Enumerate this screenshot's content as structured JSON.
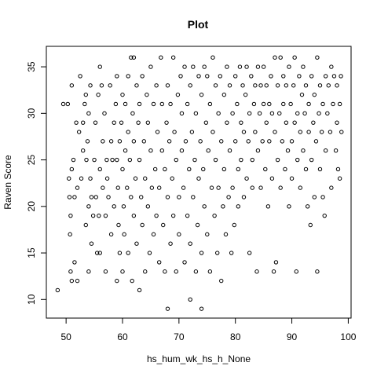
{
  "chart_data": {
    "type": "scatter",
    "title": "Plot",
    "xlabel": "hs_hum_wk_hs_h_None",
    "ylabel": "Raven Score",
    "xlim": [
      46.5,
      100.5
    ],
    "ylim": [
      8,
      37.2
    ],
    "xticks": [
      50,
      60,
      70,
      80,
      90,
      100
    ],
    "yticks": [
      10,
      15,
      20,
      25,
      30,
      35
    ],
    "grid": false,
    "legend": "none",
    "marker": "open-circle",
    "marker_color": "#000000",
    "points": [
      [
        48.5,
        11
      ],
      [
        49.5,
        31
      ],
      [
        50.3,
        31
      ],
      [
        50.5,
        23
      ],
      [
        50.6,
        21
      ],
      [
        50.7,
        17
      ],
      [
        50.8,
        13
      ],
      [
        50.8,
        19
      ],
      [
        51,
        24
      ],
      [
        51,
        33
      ],
      [
        51,
        12
      ],
      [
        51.3,
        25
      ],
      [
        51.5,
        14
      ],
      [
        51.5,
        21
      ],
      [
        51.8,
        29
      ],
      [
        52,
        12
      ],
      [
        52,
        22
      ],
      [
        52.3,
        28
      ],
      [
        52.5,
        34
      ],
      [
        52.7,
        23
      ],
      [
        53,
        26
      ],
      [
        53,
        29
      ],
      [
        53.3,
        31
      ],
      [
        53.5,
        32
      ],
      [
        53.5,
        18
      ],
      [
        53.6,
        25
      ],
      [
        53.8,
        27
      ],
      [
        54,
        30
      ],
      [
        54,
        13
      ],
      [
        54,
        20
      ],
      [
        54.3,
        23
      ],
      [
        54.3,
        33
      ],
      [
        54.5,
        16
      ],
      [
        54.5,
        21
      ],
      [
        54.8,
        19
      ],
      [
        55,
        25
      ],
      [
        55.2,
        29
      ],
      [
        55.3,
        21
      ],
      [
        55.5,
        15
      ],
      [
        55.7,
        32
      ],
      [
        55.8,
        19
      ],
      [
        56,
        35
      ],
      [
        56,
        24
      ],
      [
        56,
        15
      ],
      [
        56.3,
        33
      ],
      [
        56.5,
        22
      ],
      [
        56.5,
        27
      ],
      [
        56.8,
        30
      ],
      [
        57,
        19
      ],
      [
        57,
        13
      ],
      [
        57.2,
        25
      ],
      [
        57.3,
        23
      ],
      [
        57.5,
        21
      ],
      [
        57.8,
        33
      ],
      [
        58,
        27
      ],
      [
        58,
        17
      ],
      [
        58.2,
        25
      ],
      [
        58.5,
        29
      ],
      [
        58.5,
        20
      ],
      [
        58.8,
        31
      ],
      [
        59,
        34
      ],
      [
        59,
        12
      ],
      [
        59,
        25
      ],
      [
        59.2,
        22
      ],
      [
        59.3,
        18
      ],
      [
        59.5,
        27
      ],
      [
        59.5,
        15
      ],
      [
        59.8,
        29
      ],
      [
        60,
        32
      ],
      [
        60,
        24
      ],
      [
        60,
        13
      ],
      [
        60.2,
        20
      ],
      [
        60.3,
        17
      ],
      [
        60.5,
        26
      ],
      [
        60.5,
        31
      ],
      [
        60.8,
        22
      ],
      [
        61,
        34
      ],
      [
        61,
        28
      ],
      [
        61,
        15
      ],
      [
        61.3,
        25
      ],
      [
        61.5,
        36
      ],
      [
        61.5,
        21
      ],
      [
        61.7,
        12
      ],
      [
        61.8,
        30
      ],
      [
        62,
        36
      ],
      [
        62,
        27
      ],
      [
        62,
        19
      ],
      [
        62.3,
        23
      ],
      [
        62.5,
        33
      ],
      [
        62.5,
        16
      ],
      [
        62.8,
        29
      ],
      [
        63,
        11
      ],
      [
        63,
        25
      ],
      [
        63,
        31
      ],
      [
        63.3,
        21
      ],
      [
        63.5,
        34
      ],
      [
        63.5,
        18
      ],
      [
        63.8,
        27
      ],
      [
        64,
        13
      ],
      [
        64,
        23
      ],
      [
        64.3,
        32
      ],
      [
        64.5,
        20
      ],
      [
        64.5,
        29
      ],
      [
        64.8,
        15
      ],
      [
        65,
        26
      ],
      [
        65,
        35
      ],
      [
        65.2,
        22
      ],
      [
        65.5,
        31
      ],
      [
        65.5,
        17
      ],
      [
        65.8,
        24
      ],
      [
        66,
        33
      ],
      [
        66,
        19
      ],
      [
        66.2,
        28
      ],
      [
        66.5,
        14
      ],
      [
        66.5,
        22
      ],
      [
        66.8,
        36
      ],
      [
        67,
        26
      ],
      [
        67,
        31
      ],
      [
        67.2,
        18
      ],
      [
        67.5,
        13
      ],
      [
        67.5,
        24
      ],
      [
        67.8,
        29
      ],
      [
        68,
        9
      ],
      [
        68,
        33
      ],
      [
        68,
        21
      ],
      [
        68.3,
        27
      ],
      [
        68.5,
        16
      ],
      [
        68.5,
        31
      ],
      [
        68.8,
        23
      ],
      [
        69,
        36
      ],
      [
        69,
        19
      ],
      [
        69.2,
        28
      ],
      [
        69.5,
        13
      ],
      [
        69.5,
        25
      ],
      [
        69.8,
        32
      ],
      [
        70,
        21
      ],
      [
        70,
        17
      ],
      [
        70.3,
        34
      ],
      [
        70.5,
        26
      ],
      [
        70.5,
        30
      ],
      [
        70.8,
        22
      ],
      [
        71,
        14
      ],
      [
        71,
        35
      ],
      [
        71.2,
        27
      ],
      [
        71.5,
        19
      ],
      [
        71.5,
        31
      ],
      [
        71.8,
        24
      ],
      [
        72,
        10
      ],
      [
        72,
        33
      ],
      [
        72,
        16
      ],
      [
        72.3,
        28
      ],
      [
        72.5,
        21
      ],
      [
        72.5,
        35
      ],
      [
        72.8,
        25
      ],
      [
        73,
        13
      ],
      [
        73,
        30
      ],
      [
        73.3,
        18
      ],
      [
        73.5,
        34
      ],
      [
        73.5,
        23
      ],
      [
        73.8,
        27
      ],
      [
        74,
        9
      ],
      [
        74,
        32
      ],
      [
        74,
        15
      ],
      [
        74.3,
        24
      ],
      [
        74.5,
        35
      ],
      [
        74.5,
        20
      ],
      [
        74.8,
        29
      ],
      [
        75,
        34
      ],
      [
        75,
        17
      ],
      [
        75.2,
        26
      ],
      [
        75.5,
        31
      ],
      [
        75.5,
        13
      ],
      [
        75.8,
        22
      ],
      [
        76,
        36
      ],
      [
        76,
        28
      ],
      [
        76.3,
        19
      ],
      [
        76.5,
        33
      ],
      [
        76.5,
        25
      ],
      [
        76.8,
        15
      ],
      [
        77,
        30
      ],
      [
        77,
        22
      ],
      [
        77.3,
        34
      ],
      [
        77.5,
        27
      ],
      [
        77.5,
        12
      ],
      [
        77.8,
        20
      ],
      [
        78,
        32
      ],
      [
        78,
        24
      ],
      [
        78.3,
        17
      ],
      [
        78.5,
        35
      ],
      [
        78.5,
        29
      ],
      [
        78.8,
        21
      ],
      [
        79,
        26
      ],
      [
        79,
        33
      ],
      [
        79.3,
        15
      ],
      [
        79.5,
        30
      ],
      [
        79.5,
        22
      ],
      [
        79.8,
        18
      ],
      [
        80,
        34
      ],
      [
        80,
        27
      ],
      [
        80.3,
        31
      ],
      [
        80.5,
        24
      ],
      [
        80.5,
        20
      ],
      [
        80.8,
        35
      ],
      [
        81,
        29
      ],
      [
        81,
        25
      ],
      [
        81.3,
        33
      ],
      [
        81.5,
        21
      ],
      [
        81.5,
        28
      ],
      [
        81.8,
        32
      ],
      [
        82,
        23
      ],
      [
        82,
        35
      ],
      [
        82.3,
        27
      ],
      [
        82.5,
        15
      ],
      [
        82.5,
        30
      ],
      [
        82.8,
        34
      ],
      [
        83,
        25
      ],
      [
        83,
        22
      ],
      [
        83.3,
        31
      ],
      [
        83.5,
        28
      ],
      [
        83.5,
        33
      ],
      [
        83.8,
        13
      ],
      [
        84,
        35
      ],
      [
        84,
        26
      ],
      [
        84.3,
        30
      ],
      [
        84.5,
        22
      ],
      [
        84.5,
        33
      ],
      [
        84.8,
        27
      ],
      [
        85,
        31
      ],
      [
        85,
        35
      ],
      [
        85.3,
        24
      ],
      [
        85.5,
        29
      ],
      [
        85.5,
        33
      ],
      [
        85.8,
        20
      ],
      [
        86,
        31
      ],
      [
        86,
        27
      ],
      [
        86.3,
        34
      ],
      [
        86.5,
        23
      ],
      [
        86.5,
        30
      ],
      [
        86.8,
        13
      ],
      [
        87,
        36
      ],
      [
        87,
        28
      ],
      [
        87.2,
        14
      ],
      [
        87.5,
        25
      ],
      [
        87.5,
        33
      ],
      [
        87.8,
        30
      ],
      [
        88,
        36
      ],
      [
        88,
        22
      ],
      [
        88.3,
        27
      ],
      [
        88.5,
        34
      ],
      [
        88.5,
        31
      ],
      [
        88.8,
        24
      ],
      [
        89,
        29
      ],
      [
        89,
        33
      ],
      [
        89.3,
        26
      ],
      [
        89.5,
        20
      ],
      [
        89.5,
        35
      ],
      [
        89.8,
        31
      ],
      [
        90,
        27
      ],
      [
        90,
        23
      ],
      [
        90.3,
        33
      ],
      [
        90.5,
        36
      ],
      [
        90.5,
        29
      ],
      [
        90.8,
        13
      ],
      [
        91,
        30
      ],
      [
        91,
        25
      ],
      [
        91.3,
        34
      ],
      [
        91.5,
        22
      ],
      [
        91.5,
        28
      ],
      [
        91.8,
        32
      ],
      [
        92,
        35
      ],
      [
        92,
        26
      ],
      [
        92.3,
        30
      ],
      [
        92.5,
        24
      ],
      [
        92.5,
        33
      ],
      [
        92.8,
        20
      ],
      [
        93,
        28
      ],
      [
        93,
        31
      ],
      [
        93.3,
        18
      ],
      [
        93.5,
        25
      ],
      [
        93.5,
        34
      ],
      [
        93.8,
        29
      ],
      [
        94,
        21
      ],
      [
        94,
        32
      ],
      [
        94.3,
        27
      ],
      [
        94.5,
        36
      ],
      [
        94.5,
        13
      ],
      [
        94.8,
        30
      ],
      [
        95,
        24
      ],
      [
        95,
        33
      ],
      [
        95.3,
        28
      ],
      [
        95.5,
        21
      ],
      [
        95.5,
        31
      ],
      [
        95.8,
        19
      ],
      [
        96,
        26
      ],
      [
        96,
        34
      ],
      [
        96.3,
        30
      ],
      [
        96.5,
        33
      ],
      [
        96.8,
        28
      ],
      [
        97,
        35
      ],
      [
        97,
        22
      ],
      [
        97.3,
        31
      ],
      [
        97.5,
        34
      ],
      [
        97.8,
        26
      ],
      [
        98,
        29
      ],
      [
        98,
        33
      ],
      [
        98.2,
        24
      ],
      [
        98.5,
        23
      ],
      [
        98.5,
        31
      ],
      [
        98.7,
        34
      ],
      [
        98.8,
        28
      ]
    ]
  }
}
